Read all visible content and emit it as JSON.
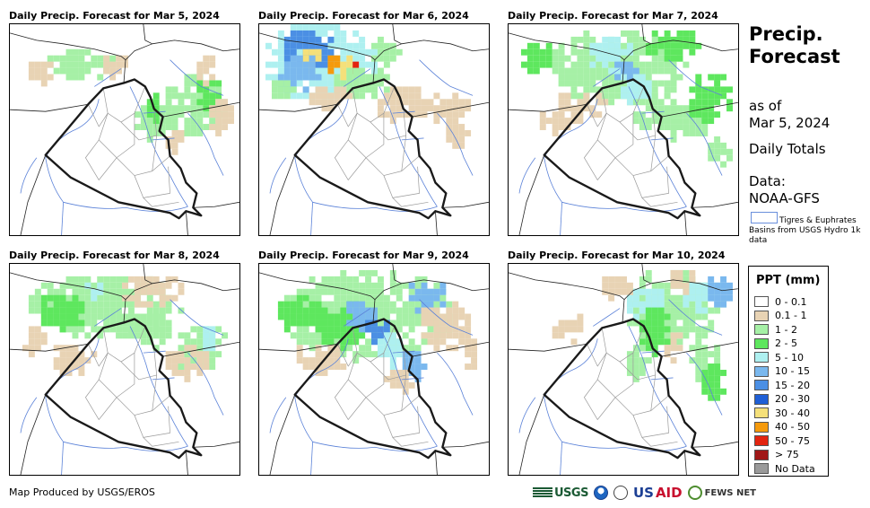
{
  "panels": [
    {
      "title": "Daily Precip. Forecast for Mar 5, 2024",
      "blobs": [
        [
          0.62,
          0.55,
          0.1,
          0.06,
          "c2"
        ],
        [
          0.78,
          0.62,
          0.14,
          0.1,
          "c2"
        ],
        [
          0.86,
          0.7,
          0.06,
          0.06,
          "c3"
        ],
        [
          0.3,
          0.82,
          0.16,
          0.05,
          "c2"
        ],
        [
          0.12,
          0.78,
          0.06,
          0.04,
          "c1"
        ],
        [
          0.45,
          0.82,
          0.06,
          0.04,
          "c1"
        ],
        [
          0.7,
          0.48,
          0.06,
          0.05,
          "c1"
        ],
        [
          0.9,
          0.58,
          0.06,
          0.06,
          "c1"
        ],
        [
          0.83,
          0.8,
          0.05,
          0.05,
          "c1"
        ],
        [
          0.6,
          0.62,
          0.04,
          0.05,
          "c3"
        ]
      ]
    },
    {
      "title": "Daily Precip. Forecast for Mar 6, 2024",
      "blobs": [
        [
          0.25,
          0.85,
          0.25,
          0.12,
          "c4"
        ],
        [
          0.2,
          0.9,
          0.13,
          0.06,
          "c6"
        ],
        [
          0.22,
          0.86,
          0.05,
          0.04,
          "c8"
        ],
        [
          0.3,
          0.84,
          0.03,
          0.03,
          "c9"
        ],
        [
          0.36,
          0.82,
          0.04,
          0.04,
          "c8"
        ],
        [
          0.39,
          0.81,
          0.02,
          0.02,
          "c10"
        ],
        [
          0.15,
          0.8,
          0.1,
          0.06,
          "c5"
        ],
        [
          0.45,
          0.74,
          0.14,
          0.05,
          "c2"
        ],
        [
          0.6,
          0.64,
          0.12,
          0.06,
          "c1"
        ],
        [
          0.8,
          0.62,
          0.1,
          0.05,
          "c1"
        ],
        [
          0.3,
          0.66,
          0.1,
          0.04,
          "c1"
        ],
        [
          0.85,
          0.5,
          0.06,
          0.04,
          "c1"
        ],
        [
          0.1,
          0.7,
          0.06,
          0.04,
          "c2"
        ],
        [
          0.55,
          0.9,
          0.08,
          0.05,
          "c2"
        ]
      ]
    },
    {
      "title": "Daily Precip. Forecast for Mar 7, 2024",
      "blobs": [
        [
          0.45,
          0.82,
          0.3,
          0.12,
          "c2"
        ],
        [
          0.42,
          0.86,
          0.1,
          0.06,
          "c4"
        ],
        [
          0.5,
          0.78,
          0.06,
          0.04,
          "c5"
        ],
        [
          0.55,
          0.7,
          0.08,
          0.05,
          "c4"
        ],
        [
          0.62,
          0.6,
          0.1,
          0.06,
          "c2"
        ],
        [
          0.75,
          0.55,
          0.12,
          0.06,
          "c2"
        ],
        [
          0.85,
          0.66,
          0.1,
          0.08,
          "c3"
        ],
        [
          0.12,
          0.85,
          0.08,
          0.05,
          "c3"
        ],
        [
          0.3,
          0.62,
          0.12,
          0.05,
          "c1"
        ],
        [
          0.2,
          0.55,
          0.08,
          0.04,
          "c1"
        ],
        [
          0.9,
          0.42,
          0.06,
          0.05,
          "c2"
        ],
        [
          0.72,
          0.92,
          0.14,
          0.05,
          "c3"
        ]
      ]
    },
    {
      "title": "Daily Precip. Forecast for Mar 8, 2024",
      "blobs": [
        [
          0.4,
          0.8,
          0.35,
          0.1,
          "c2"
        ],
        [
          0.2,
          0.78,
          0.12,
          0.06,
          "c3"
        ],
        [
          0.6,
          0.7,
          0.1,
          0.06,
          "c2"
        ],
        [
          0.82,
          0.62,
          0.12,
          0.08,
          "c2"
        ],
        [
          0.85,
          0.68,
          0.04,
          0.04,
          "c4"
        ],
        [
          0.75,
          0.55,
          0.1,
          0.06,
          "c1"
        ],
        [
          0.25,
          0.58,
          0.1,
          0.05,
          "c1"
        ],
        [
          0.1,
          0.65,
          0.06,
          0.05,
          "c1"
        ],
        [
          0.6,
          0.88,
          0.14,
          0.05,
          "c1"
        ],
        [
          0.35,
          0.88,
          0.05,
          0.03,
          "c4"
        ]
      ]
    },
    {
      "title": "Daily Precip. Forecast for Mar 9, 2024",
      "blobs": [
        [
          0.45,
          0.78,
          0.38,
          0.14,
          "c2"
        ],
        [
          0.35,
          0.72,
          0.12,
          0.08,
          "c3"
        ],
        [
          0.42,
          0.76,
          0.08,
          0.05,
          "c5"
        ],
        [
          0.5,
          0.7,
          0.06,
          0.04,
          "c6"
        ],
        [
          0.56,
          0.62,
          0.06,
          0.06,
          "c4"
        ],
        [
          0.66,
          0.55,
          0.06,
          0.05,
          "c5"
        ],
        [
          0.72,
          0.85,
          0.1,
          0.05,
          "c5"
        ],
        [
          0.8,
          0.72,
          0.12,
          0.08,
          "c1"
        ],
        [
          0.15,
          0.78,
          0.1,
          0.06,
          "c3"
        ],
        [
          0.25,
          0.58,
          0.12,
          0.05,
          "c1"
        ],
        [
          0.92,
          0.58,
          0.05,
          0.06,
          "c1"
        ],
        [
          0.6,
          0.45,
          0.08,
          0.04,
          "c1"
        ]
      ]
    },
    {
      "title": "Daily Precip. Forecast for Mar 10, 2024",
      "blobs": [
        [
          0.72,
          0.8,
          0.22,
          0.12,
          "c2"
        ],
        [
          0.82,
          0.86,
          0.1,
          0.06,
          "c4"
        ],
        [
          0.9,
          0.9,
          0.06,
          0.05,
          "c5"
        ],
        [
          0.6,
          0.82,
          0.1,
          0.06,
          "c4"
        ],
        [
          0.62,
          0.7,
          0.08,
          0.08,
          "c3"
        ],
        [
          0.55,
          0.55,
          0.06,
          0.06,
          "c2"
        ],
        [
          0.85,
          0.55,
          0.08,
          0.06,
          "c2"
        ],
        [
          0.88,
          0.45,
          0.06,
          0.06,
          "c3"
        ],
        [
          0.45,
          0.9,
          0.08,
          0.04,
          "c1"
        ],
        [
          0.25,
          0.72,
          0.08,
          0.05,
          "c1"
        ],
        [
          0.7,
          0.62,
          0.05,
          0.05,
          "c1"
        ],
        [
          0.75,
          0.95,
          0.06,
          0.04,
          "c1"
        ]
      ]
    }
  ],
  "sidebar": {
    "title_line1": "Precip.",
    "title_line2": "Forecast",
    "asof_line1": "as of",
    "asof_line2": "Mar 5, 2024",
    "totals": "Daily Totals",
    "data_line1": "Data:",
    "data_line2": "NOAA-GFS",
    "basin_text": "Tigres & Euphrates Basins from USGS Hydro 1k data"
  },
  "legend": {
    "title": "PPT (mm)",
    "items": [
      {
        "key": "c0",
        "label": "0 - 0.1",
        "color": "#ffffff"
      },
      {
        "key": "c1",
        "label": "0.1 - 1",
        "color": "#e8d3b4"
      },
      {
        "key": "c2",
        "label": "1 - 2",
        "color": "#a6f0a6"
      },
      {
        "key": "c3",
        "label": "2 - 5",
        "color": "#5ee75e"
      },
      {
        "key": "c4",
        "label": "5 - 10",
        "color": "#aef0f0"
      },
      {
        "key": "c5",
        "label": "10 - 15",
        "color": "#7ab8ee"
      },
      {
        "key": "c6",
        "label": "15 - 20",
        "color": "#4b8fe4"
      },
      {
        "key": "c7",
        "label": "20 - 30",
        "color": "#1f5fd6"
      },
      {
        "key": "c8",
        "label": "30 - 40",
        "color": "#f5e07a"
      },
      {
        "key": "c9",
        "label": "40 - 50",
        "color": "#f59a0c"
      },
      {
        "key": "c10",
        "label": "50 - 75",
        "color": "#e3240f"
      },
      {
        "key": "c11",
        "label": "> 75",
        "color": "#a01818"
      },
      {
        "key": "nodata",
        "label": "No Data",
        "color": "#9a9a9a"
      }
    ]
  },
  "footer": {
    "credit": "Map Produced by USGS/EROS",
    "logo_usgs": "USGS",
    "logo_us": "US",
    "logo_aid": "AID",
    "logo_fews": "FEWS NET"
  }
}
